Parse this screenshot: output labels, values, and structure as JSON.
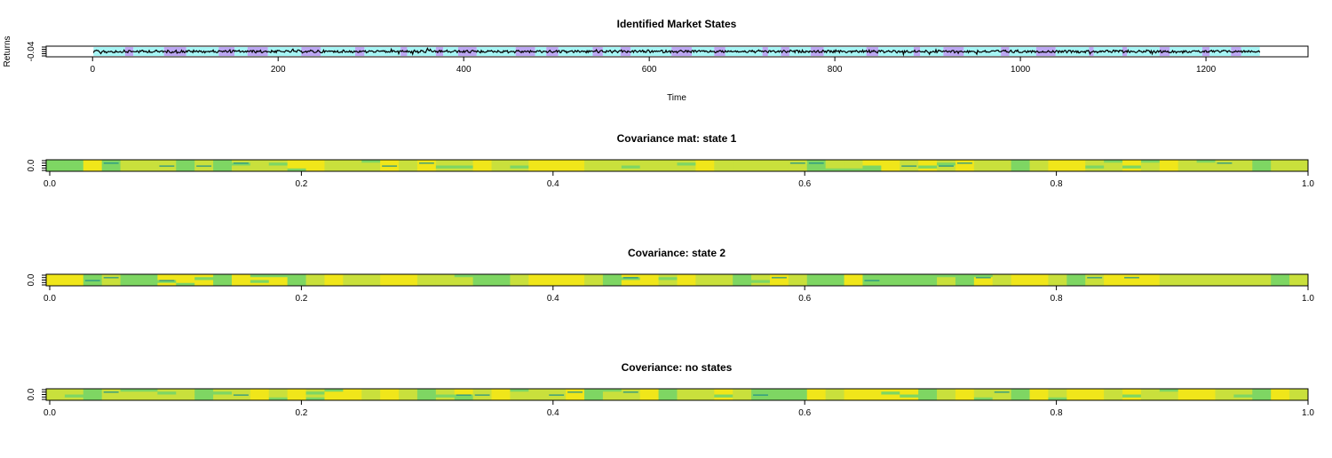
{
  "colors": {
    "state_1": "#bba6f2",
    "state_2": "#a6f5f5",
    "line": "#000000",
    "heat_low": "#f0e61a",
    "heat_mid": "#c9e03c",
    "heat_high": "#7ed663",
    "heat_peak": "#1f8f8a"
  },
  "chart_data": [
    {
      "id": "states",
      "type": "line",
      "title": "Identified Market States",
      "xlabel": "Time",
      "ylabel": "Returns",
      "xlim": [
        -50,
        1310
      ],
      "ylim": [
        -0.06,
        0.04
      ],
      "xticks": [
        0,
        200,
        400,
        600,
        800,
        1000,
        1200
      ],
      "xtick_labels": [
        "0",
        "200",
        "400",
        "600",
        "800",
        "1000",
        "1200"
      ],
      "ytick_labels": [
        "-0.04"
      ],
      "x_range": [
        1,
        1258
      ],
      "background": "shaded state regions (state 1 purple, state 2 cyan)"
    },
    {
      "id": "cov1",
      "type": "heatmap",
      "title": "Covariance mat: state 1",
      "xlim": [
        0,
        1
      ],
      "xticks": [
        0,
        0.2,
        0.4,
        0.6,
        0.8,
        1.0
      ],
      "xtick_labels": [
        "0.0",
        "0.2",
        "0.4",
        "0.6",
        "0.8",
        "1.0"
      ],
      "ytick_labels": [
        "0.0"
      ]
    },
    {
      "id": "cov2",
      "type": "heatmap",
      "title": "Covariance: state 2",
      "xlim": [
        0,
        1
      ],
      "xticks": [
        0,
        0.2,
        0.4,
        0.6,
        0.8,
        1.0
      ],
      "xtick_labels": [
        "0.0",
        "0.2",
        "0.4",
        "0.6",
        "0.8",
        "1.0"
      ],
      "ytick_labels": [
        "0.0"
      ]
    },
    {
      "id": "cov0",
      "type": "heatmap",
      "title": "Coveriance: no states",
      "xlim": [
        0,
        1
      ],
      "xticks": [
        0,
        0.2,
        0.4,
        0.6,
        0.8,
        1.0
      ],
      "xtick_labels": [
        "0.0",
        "0.2",
        "0.4",
        "0.6",
        "0.8",
        "1.0"
      ],
      "ytick_labels": [
        "0.0"
      ]
    }
  ]
}
